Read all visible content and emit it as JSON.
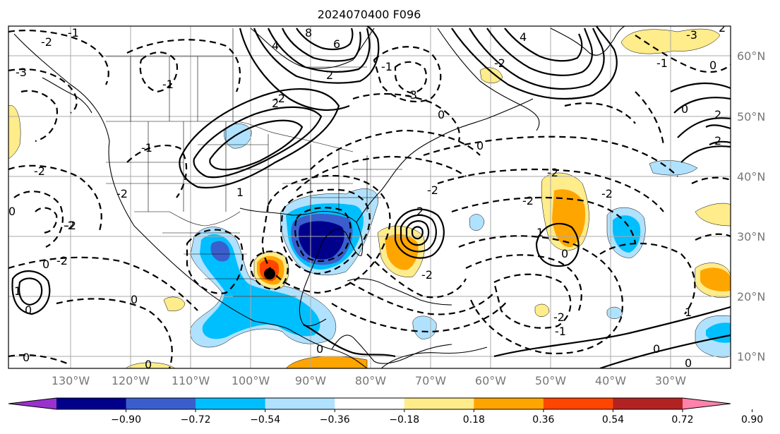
{
  "title": "2024070400 F096",
  "longitude_labels": [
    "130°W",
    "120°W",
    "110°W",
    "100°W",
    "90°W",
    "80°W",
    "70°W",
    "60°W",
    "50°W",
    "40°W",
    "30°W"
  ],
  "latitude_labels": [
    "10°N",
    "20°N",
    "30°N",
    "40°N",
    "50°N",
    "60°N"
  ],
  "colorbar": {
    "tick_labels": [
      "−0.90",
      "−0.72",
      "−0.54",
      "−0.36",
      "−0.18",
      "0.18",
      "0.36",
      "0.54",
      "0.72",
      "0.90"
    ],
    "colors": [
      "#9932cc",
      "#00008b",
      "#3a5fcd",
      "#00bfff",
      "#b0e2ff",
      "#ffffff",
      "#ffec8b",
      "#ffa500",
      "#ff4500",
      "#b22222",
      "#ff82ab"
    ]
  },
  "contour_labels": [
    "-2",
    "-1",
    "-3",
    "-2",
    "-1",
    "-2",
    "0",
    "-3",
    "-2",
    "-2",
    "-2",
    "-2",
    "-1",
    "-2",
    "-2",
    "-3",
    "0",
    "-1",
    "-2",
    "-2",
    "-1",
    "-2",
    "-2",
    "-2",
    "-1",
    "0",
    "2",
    "2",
    "4",
    "6",
    "8",
    "1",
    "1",
    "2",
    "2",
    "2",
    "4",
    "0",
    "0",
    "0",
    "2",
    "0",
    "0",
    "0",
    "1",
    "1",
    "0",
    "0",
    "0",
    "0",
    "0"
  ]
}
